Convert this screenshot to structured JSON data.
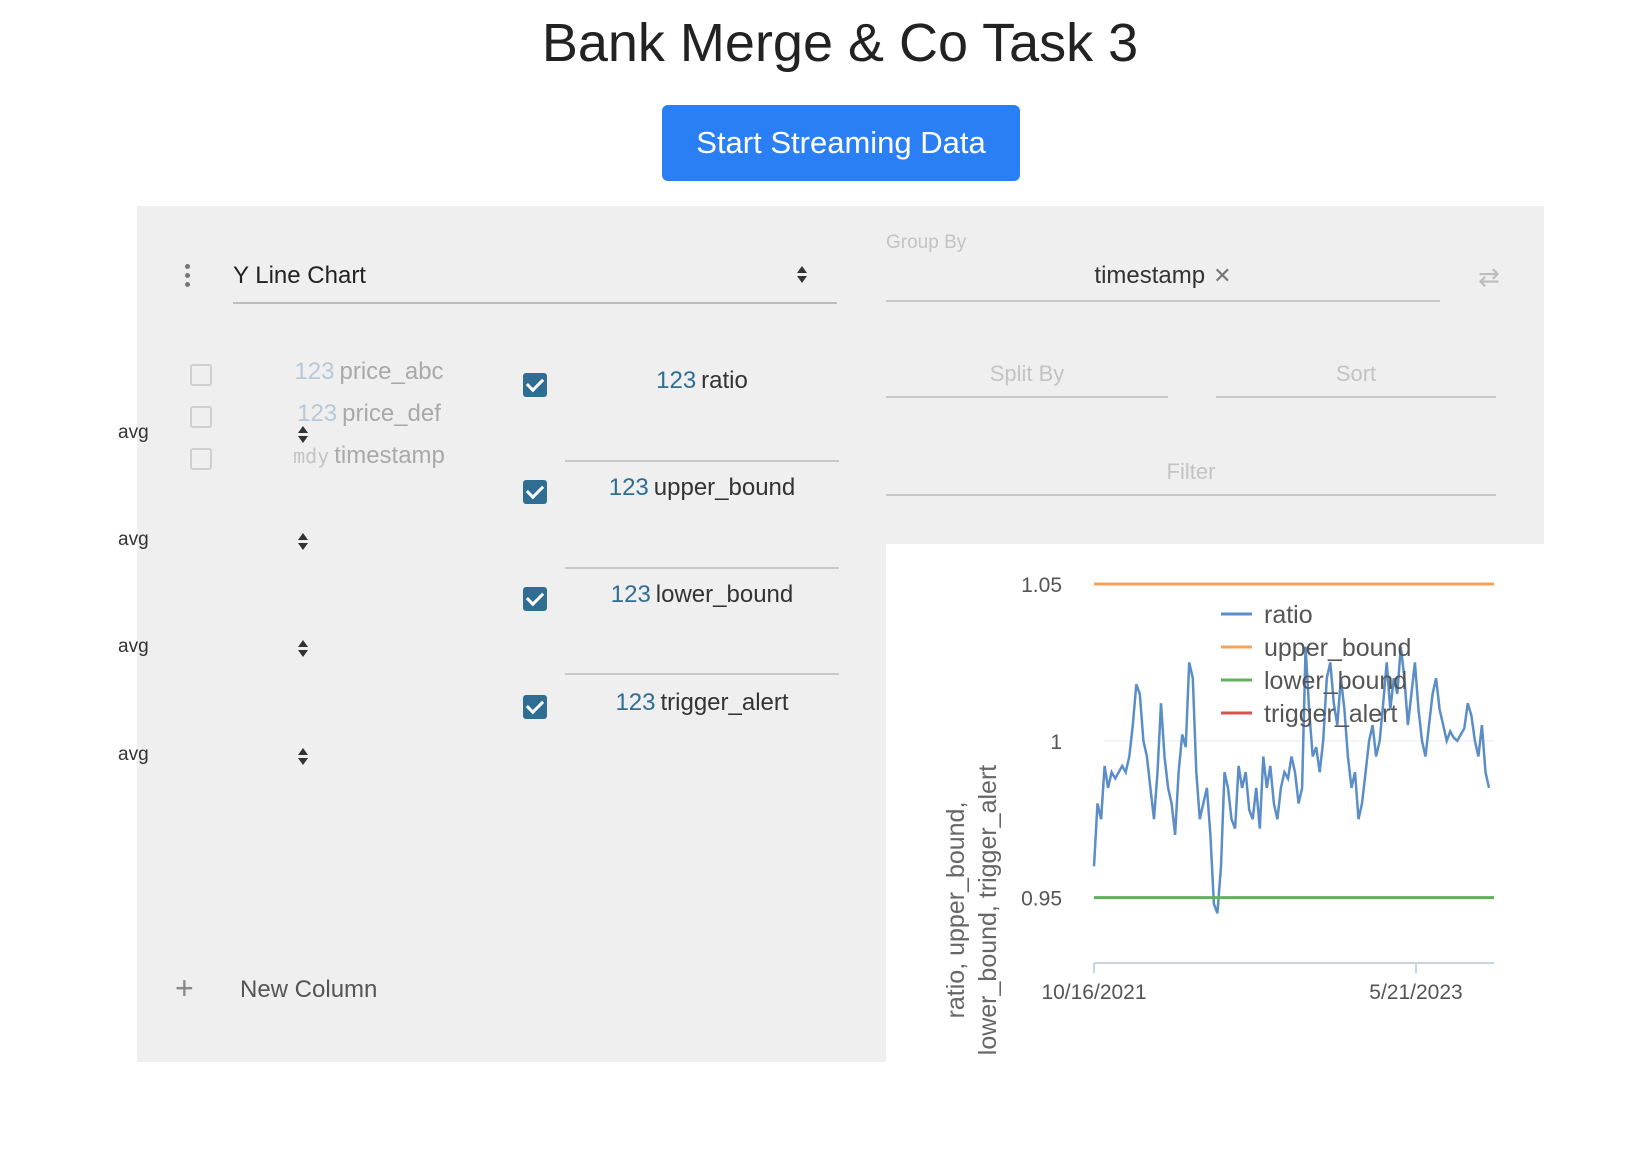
{
  "page": {
    "title": "Bank Merge & Co Task 3"
  },
  "stream_button": {
    "label": "Start Streaming Data"
  },
  "plugin": {
    "selected": "Y Line Chart"
  },
  "inactive_columns": [
    {
      "type": "123",
      "name": "price_abc"
    },
    {
      "type": "123",
      "name": "price_def"
    },
    {
      "type": "mdy",
      "name": "timestamp"
    }
  ],
  "active_columns": [
    {
      "type": "123",
      "name": "ratio",
      "agg": "avg",
      "checked": true
    },
    {
      "type": "123",
      "name": "upper_bound",
      "agg": "avg",
      "checked": true
    },
    {
      "type": "123",
      "name": "lower_bound",
      "agg": "avg",
      "checked": true
    },
    {
      "type": "123",
      "name": "trigger_alert",
      "agg": "avg",
      "checked": true
    }
  ],
  "new_column": {
    "label": "New Column"
  },
  "group_by": {
    "label": "Group By",
    "value": "timestamp"
  },
  "split_by": {
    "label": "Split By"
  },
  "sort": {
    "label": "Sort"
  },
  "filter": {
    "label": "Filter"
  },
  "chart_data": {
    "type": "line",
    "title": "",
    "ylabel_line1": "ratio, upper_bound,",
    "ylabel_line2": "lower_bound, trigger_alert",
    "ylim": [
      0.94,
      1.05
    ],
    "yticks": [
      "1.05",
      "1",
      "0.95"
    ],
    "xticks": [
      "10/16/2021",
      "5/21/2023"
    ],
    "x_range": [
      "2021-10-16",
      "2023-10-01"
    ],
    "legend_position": "top-right",
    "series": [
      {
        "name": "ratio",
        "color": "#5b8ec6",
        "values": [
          0.96,
          0.98,
          0.975,
          0.992,
          0.985,
          0.99,
          0.988,
          0.99,
          0.992,
          0.99,
          0.995,
          1.005,
          1.018,
          1.015,
          1.0,
          0.995,
          0.985,
          0.975,
          0.99,
          1.012,
          0.995,
          0.985,
          0.98,
          0.97,
          0.99,
          1.002,
          0.998,
          1.025,
          1.02,
          0.99,
          0.975,
          0.98,
          0.985,
          0.97,
          0.948,
          0.945,
          0.96,
          0.99,
          0.985,
          0.975,
          0.972,
          0.992,
          0.985,
          0.99,
          0.978,
          0.975,
          0.985,
          0.972,
          0.995,
          0.985,
          0.992,
          0.98,
          0.975,
          0.985,
          0.99,
          0.988,
          0.995,
          0.99,
          0.98,
          0.985,
          1.03,
          1.01,
          0.995,
          0.998,
          0.99,
          1.0,
          1.02,
          1.025,
          1.012,
          1.005,
          1.02,
          1.01,
          0.995,
          0.985,
          0.99,
          0.975,
          0.98,
          0.99,
          1.0,
          1.005,
          0.995,
          1.0,
          1.012,
          1.025,
          1.01,
          1.02,
          1.015,
          1.03,
          1.02,
          1.005,
          1.015,
          1.025,
          1.01,
          1.0,
          0.995,
          1.005,
          1.015,
          1.02,
          1.01,
          1.005,
          1.0,
          1.003,
          1.001,
          1.0,
          1.002,
          1.004,
          1.012,
          1.008,
          1.0,
          0.995,
          1.005,
          0.99,
          0.985
        ]
      },
      {
        "name": "upper_bound",
        "color": "#f5a25b",
        "value": 1.05
      },
      {
        "name": "lower_bound",
        "color": "#62b05c",
        "value": 0.95
      },
      {
        "name": "trigger_alert",
        "color": "#d9534f",
        "values_note_hidden": ""
      }
    ]
  }
}
